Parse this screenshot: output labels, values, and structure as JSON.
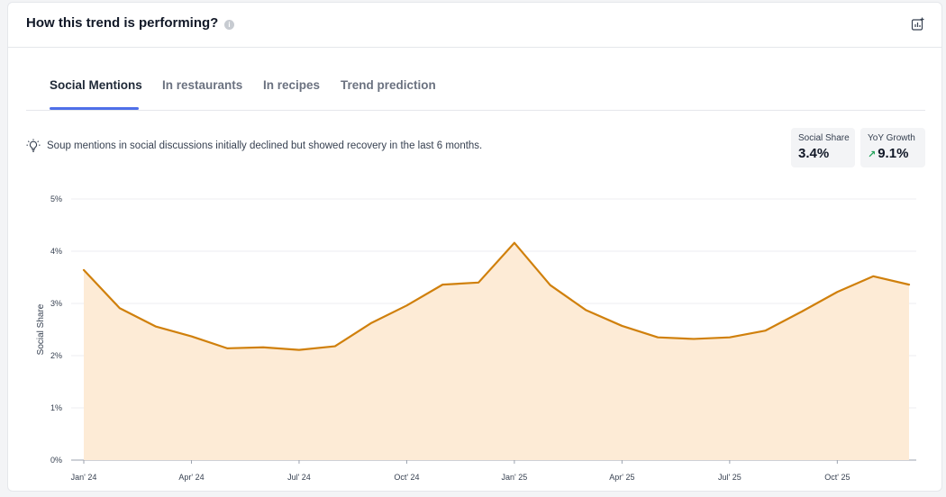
{
  "header": {
    "title": "How this trend is performing?",
    "info_icon": "info-icon",
    "export_icon": "export-chart-icon"
  },
  "tabs": [
    {
      "label": "Social Mentions",
      "active": true
    },
    {
      "label": "In restaurants",
      "active": false
    },
    {
      "label": "In recipes",
      "active": false
    },
    {
      "label": "Trend prediction",
      "active": false
    }
  ],
  "insight": {
    "icon": "lightbulb-icon",
    "text": "Soup mentions in social discussions initially declined but showed recovery in the last 6 months."
  },
  "metrics": {
    "social_share": {
      "label": "Social Share",
      "value": "3.4%"
    },
    "yoy_growth": {
      "label": "YoY Growth",
      "value": "9.1%",
      "trend": "up"
    }
  },
  "colors": {
    "accent": "#4f6fe8",
    "line": "#d0800c",
    "fill": "#fdebd6",
    "growth": "#22a35a"
  },
  "chart_data": {
    "type": "area",
    "ylabel": "Social Share",
    "ylim": [
      0,
      5
    ],
    "yticks": [
      "0%",
      "1%",
      "2%",
      "3%",
      "4%",
      "5%"
    ],
    "xticks": [
      "Jan' 24",
      "Apr' 24",
      "Jul' 24",
      "Oct' 24",
      "Jan' 25",
      "Apr' 25",
      "Jul' 25",
      "Oct' 25"
    ],
    "grid": true,
    "x": [
      "2024-01",
      "2024-02",
      "2024-03",
      "2024-04",
      "2024-05",
      "2024-06",
      "2024-07",
      "2024-08",
      "2024-09",
      "2024-10",
      "2024-11",
      "2024-12",
      "2025-01",
      "2025-02",
      "2025-03",
      "2025-04",
      "2025-05",
      "2025-06",
      "2025-07",
      "2025-08",
      "2025-09",
      "2025-10",
      "2025-11",
      "2025-12"
    ],
    "series": [
      {
        "values": [
          3.64,
          2.91,
          2.56,
          2.37,
          2.14,
          2.16,
          2.11,
          2.18,
          2.62,
          2.96,
          3.36,
          3.4,
          4.16,
          3.35,
          2.87,
          2.57,
          2.35,
          2.32,
          2.35,
          2.48,
          2.84,
          3.22,
          3.52,
          3.36
        ]
      }
    ]
  }
}
